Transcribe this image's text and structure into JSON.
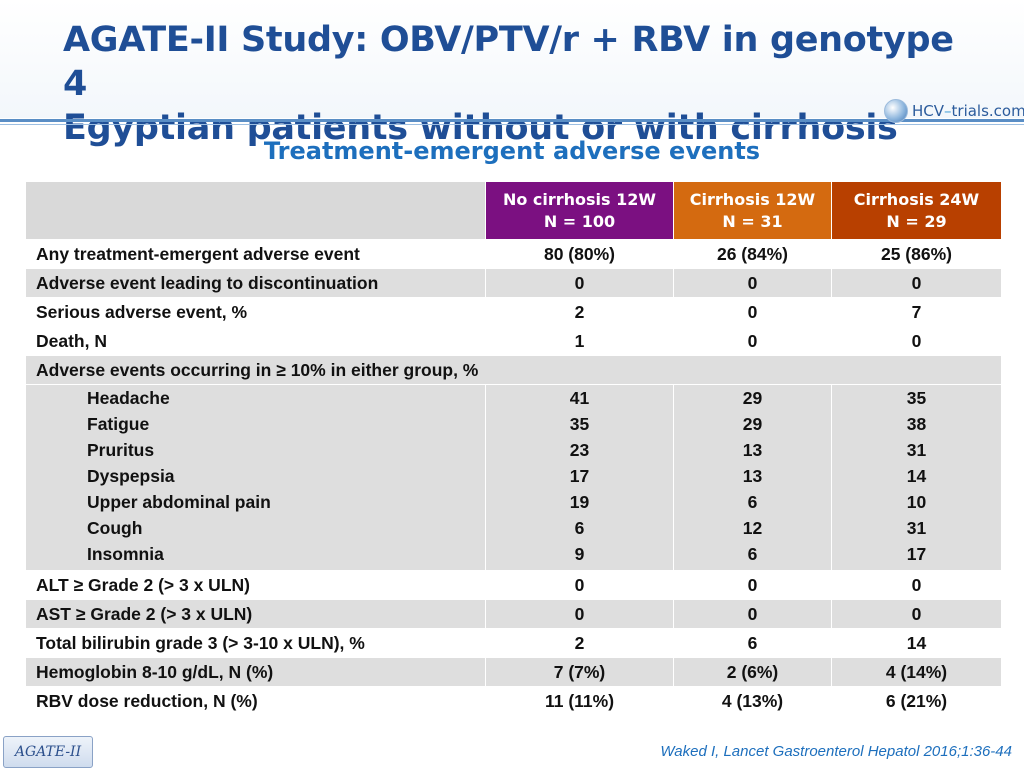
{
  "title_line1": "AGATE-II Study: OBV/PTV/r + RBV in genotype 4",
  "title_line2": "Egyptian patients without or with cirrhosis",
  "logo": {
    "prefix": "HCV",
    "dash": "–",
    "suffix": "trials.com"
  },
  "subtitle": "Treatment-emergent adverse events",
  "columns": [
    {
      "line1": "No cirrhosis 12W",
      "line2": "N = 100",
      "color": "#7b1081"
    },
    {
      "line1": "Cirrhosis 12W",
      "line2": "N = 31",
      "color": "#d46a10"
    },
    {
      "line1": "Cirrhosis 24W",
      "line2": "N = 29",
      "color": "#b84000"
    }
  ],
  "rows_top": [
    {
      "label": "Any treatment-emergent adverse event",
      "values": [
        "80 (80%)",
        "26 (84%)",
        "25 (86%)"
      ]
    },
    {
      "label": "Adverse event leading to discontinuation",
      "values": [
        "0",
        "0",
        "0"
      ]
    },
    {
      "label": "Serious adverse event, %",
      "values": [
        "2",
        "0",
        "7"
      ]
    },
    {
      "label": "Death, N",
      "values": [
        "1",
        "0",
        "0"
      ]
    }
  ],
  "section_heading": "Adverse events occurring in ≥ 10% in either group, %",
  "ae_list": {
    "labels": [
      "Headache",
      "Fatigue",
      "Pruritus",
      "Dyspepsia",
      "Upper abdominal pain",
      "Cough",
      "Insomnia"
    ],
    "col1": [
      "41",
      "35",
      "23",
      "17",
      "19",
      "6",
      "9"
    ],
    "col2": [
      "29",
      "29",
      "13",
      "13",
      "6",
      "12",
      "6"
    ],
    "col3": [
      "35",
      "38",
      "31",
      "14",
      "10",
      "31",
      "17"
    ]
  },
  "rows_bottom": [
    {
      "label": "ALT ≥ Grade 2 (> 3 x ULN)",
      "values": [
        "0",
        "0",
        "0"
      ]
    },
    {
      "label": "AST ≥ Grade 2 (> 3 x ULN)",
      "values": [
        "0",
        "0",
        "0"
      ]
    },
    {
      "label": "Total bilirubin grade 3 (> 3-10 x ULN), %",
      "values": [
        "2",
        "6",
        "14"
      ]
    },
    {
      "label": "Hemoglobin 8-10 g/dL, N (%)",
      "values": [
        "7 (7%)",
        "2 (6%)",
        "4 (14%)"
      ]
    },
    {
      "label": "RBV dose reduction, N (%)",
      "values": [
        "11 (11%)",
        "4 (13%)",
        "6 (21%)"
      ]
    }
  ],
  "footer_tag": "AGATE-II",
  "citation": "Waked I, Lancet Gastroenterol Hepatol 2016;1:36-44"
}
